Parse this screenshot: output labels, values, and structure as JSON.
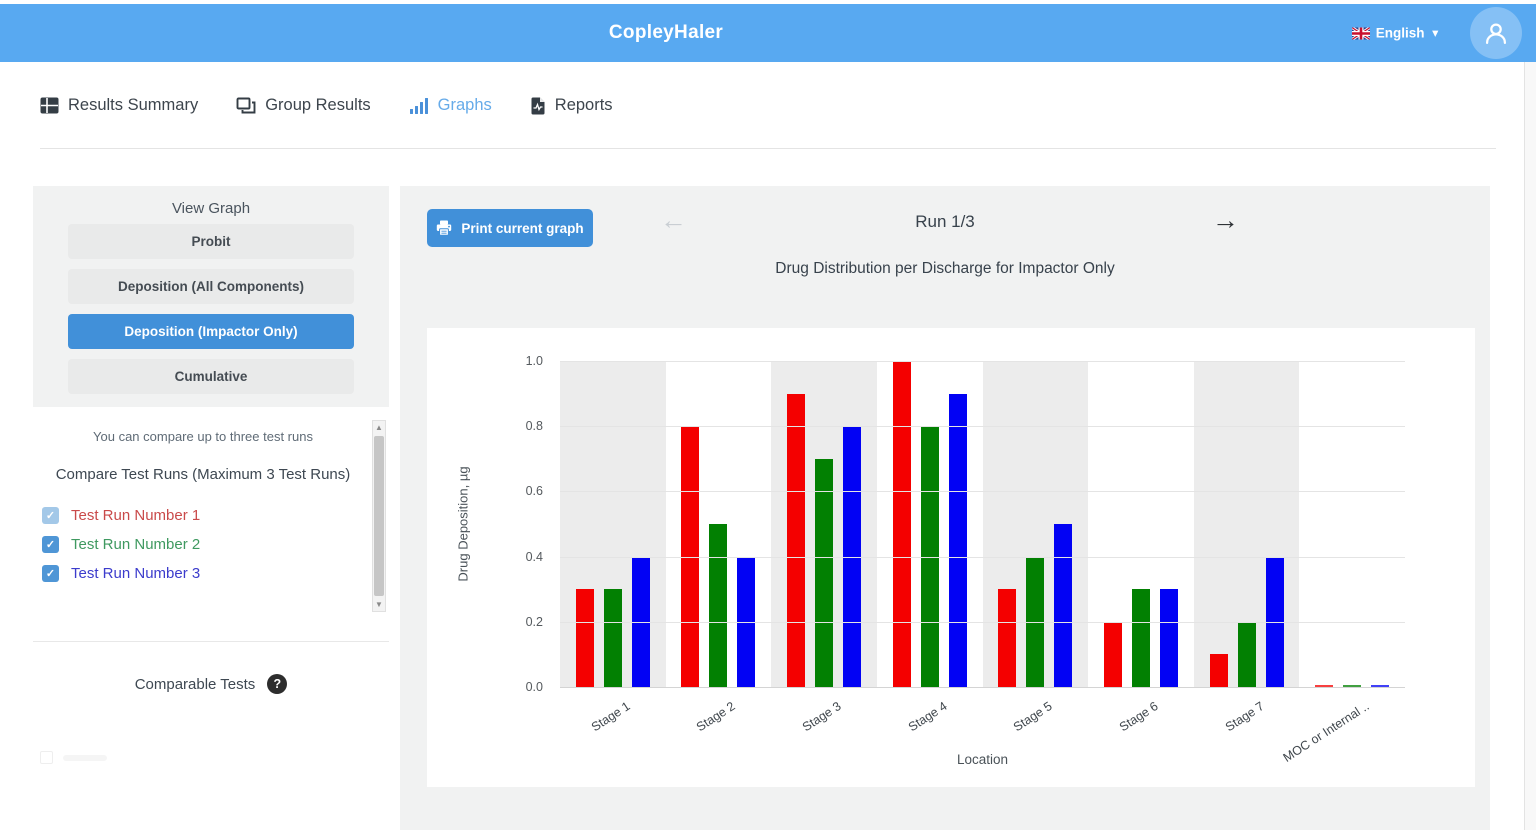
{
  "header": {
    "title": "CopleyHaler",
    "language": "English",
    "bg_color": "#58a9f1",
    "accent_color": "#4190d9"
  },
  "nav": {
    "items": [
      {
        "label": "Results Summary",
        "icon": "table-icon",
        "active": false
      },
      {
        "label": "Group Results",
        "icon": "windows-icon",
        "active": false
      },
      {
        "label": "Graphs",
        "icon": "bar-chart-icon",
        "active": true
      },
      {
        "label": "Reports",
        "icon": "report-icon",
        "active": false
      }
    ],
    "active_color": "#66abe9"
  },
  "sidebar": {
    "view_graph_title": "View Graph",
    "buttons": [
      {
        "label": "Probit",
        "selected": false
      },
      {
        "label": "Deposition (All Components)",
        "selected": false
      },
      {
        "label": "Deposition (Impactor Only)",
        "selected": true
      },
      {
        "label": "Cumulative",
        "selected": false
      }
    ],
    "compare_hint": "You can compare up to three test runs",
    "compare_title": "Compare Test Runs (Maximum 3 Test Runs)",
    "test_runs": [
      {
        "label": "Test Run Number 1",
        "color": "#c94a4a",
        "checked": true,
        "disabled": true
      },
      {
        "label": "Test Run Number 2",
        "color": "#3f9960",
        "checked": true,
        "disabled": false
      },
      {
        "label": "Test Run Number 3",
        "color": "#3c3ccc",
        "checked": true,
        "disabled": false
      }
    ],
    "comparable_tests_title": "Comparable Tests",
    "help_glyph": "?"
  },
  "graph_header": {
    "print_label": "Print current graph",
    "run_label": "Run 1/3",
    "prev_glyph": "←",
    "next_glyph": "→"
  },
  "chart_data": {
    "type": "bar",
    "title": "Drug Distribution per Discharge for Impactor Only",
    "xlabel": "Location",
    "ylabel": "Drug Deposition, µg",
    "ylim": [
      0,
      1.0
    ],
    "yticks": [
      "0.0",
      "0.2",
      "0.4",
      "0.6",
      "0.8",
      "1.0"
    ],
    "grid": true,
    "band_color": "#ececec",
    "legend": "none",
    "categories": [
      "Stage 1",
      "Stage 2",
      "Stage 3",
      "Stage 4",
      "Stage 5",
      "Stage 6",
      "Stage 7",
      "MOC or Internal .."
    ],
    "series": [
      {
        "name": "Test Run Number 1",
        "color": "#f40000",
        "values": [
          0.3,
          0.8,
          0.9,
          1.0,
          0.3,
          0.2,
          0.1,
          0.005
        ]
      },
      {
        "name": "Test Run Number 2",
        "color": "#028002",
        "values": [
          0.3,
          0.5,
          0.7,
          0.8,
          0.4,
          0.3,
          0.2,
          0.005
        ]
      },
      {
        "name": "Test Run Number 3",
        "color": "#0202f4",
        "values": [
          0.4,
          0.4,
          0.8,
          0.9,
          0.5,
          0.3,
          0.4,
          0.005
        ]
      }
    ]
  },
  "scrollbar": {
    "up_glyph": "▲",
    "down_glyph": "▼"
  },
  "checkbox_glyph": "✓"
}
